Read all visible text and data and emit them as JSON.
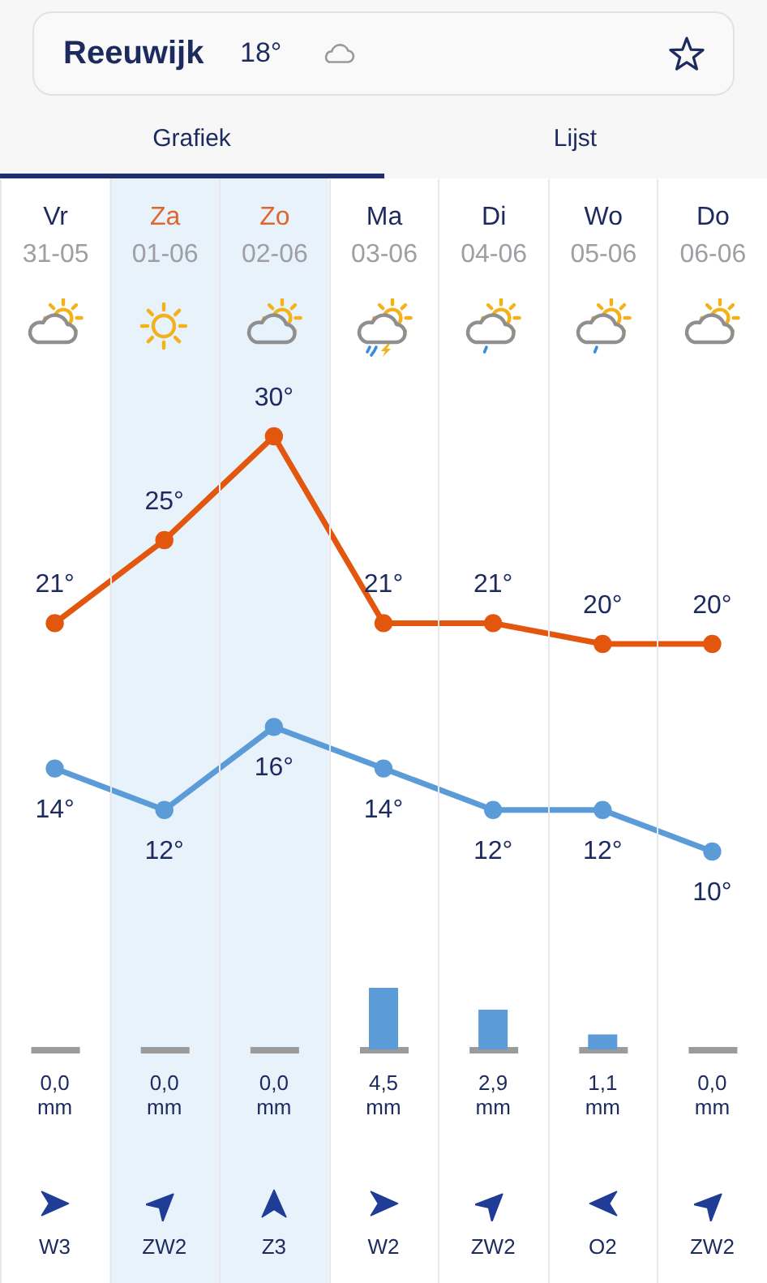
{
  "chart_data": [
    {
      "type": "other",
      "title": "Reeuwijk",
      "subtitle": "18°",
      "annotations": [
        "Grafiek",
        "Lijst"
      ]
    },
    {
      "type": "line",
      "categories": [
        "Vr 31-05",
        "Za 01-06",
        "Zo 02-06",
        "Ma 03-06",
        "Di 04-06",
        "Wo 05-06",
        "Do 06-06"
      ],
      "series": [
        {
          "color": "#e2560e",
          "values": [
            21,
            25,
            30,
            21,
            21,
            20,
            20
          ],
          "value_labels": [
            "21°",
            "25°",
            "30°",
            "21°",
            "21°",
            "20°",
            "20°"
          ]
        },
        {
          "color": "#5b9bd8",
          "values": [
            14,
            12,
            16,
            14,
            12,
            12,
            10
          ],
          "value_labels": [
            "14°",
            "12°",
            "16°",
            "14°",
            "12°",
            "12°",
            "10°"
          ]
        }
      ],
      "marker": "circle",
      "grid": "x",
      "tick_labels": "x",
      "bands": [
        {
          "axis": "x",
          "from": "Za 01-06",
          "to": "Zo 02-06",
          "color": "#e7f2fb"
        }
      ]
    },
    {
      "type": "bar",
      "categories": [
        null,
        null,
        null,
        null,
        null,
        null,
        null
      ],
      "color": "#5b9bd8",
      "values": [
        0,
        0,
        0,
        4.5,
        2.9,
        1.1,
        0
      ],
      "value_labels": [
        "0,0 mm",
        "0,0 mm",
        "0,0 mm",
        "4,5 mm",
        "2,9 mm",
        "1,1 mm",
        "0,0 mm"
      ],
      "grid": "x",
      "annotations": [
        "W3",
        "ZW2",
        "Z3",
        "W2",
        "ZW2",
        "O2",
        "ZW2"
      ]
    }
  ]
}
